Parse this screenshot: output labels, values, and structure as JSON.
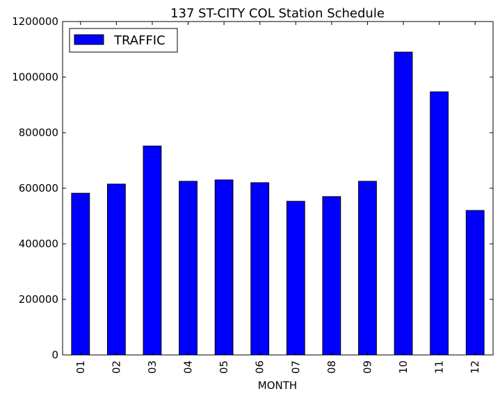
{
  "chart_data": {
    "type": "bar",
    "title": "137 ST-CITY COL Station Schedule",
    "xlabel": "MONTH",
    "ylabel": "",
    "categories": [
      "01",
      "02",
      "03",
      "04",
      "05",
      "06",
      "07",
      "08",
      "09",
      "10",
      "11",
      "12"
    ],
    "series": [
      {
        "name": "TRAFFIC",
        "color": "#0000ff",
        "values": [
          582000,
          615000,
          752000,
          625000,
          630000,
          620000,
          553000,
          570000,
          625000,
          1090000,
          947000,
          520000
        ]
      }
    ],
    "ylim": [
      0,
      1200000
    ],
    "yticks": [
      0,
      200000,
      400000,
      600000,
      800000,
      1000000,
      1200000
    ],
    "ytick_labels": [
      "0",
      "200000",
      "400000",
      "600000",
      "800000",
      "1000000",
      "1200000"
    ],
    "grid": false,
    "legend_position": "top-left"
  }
}
